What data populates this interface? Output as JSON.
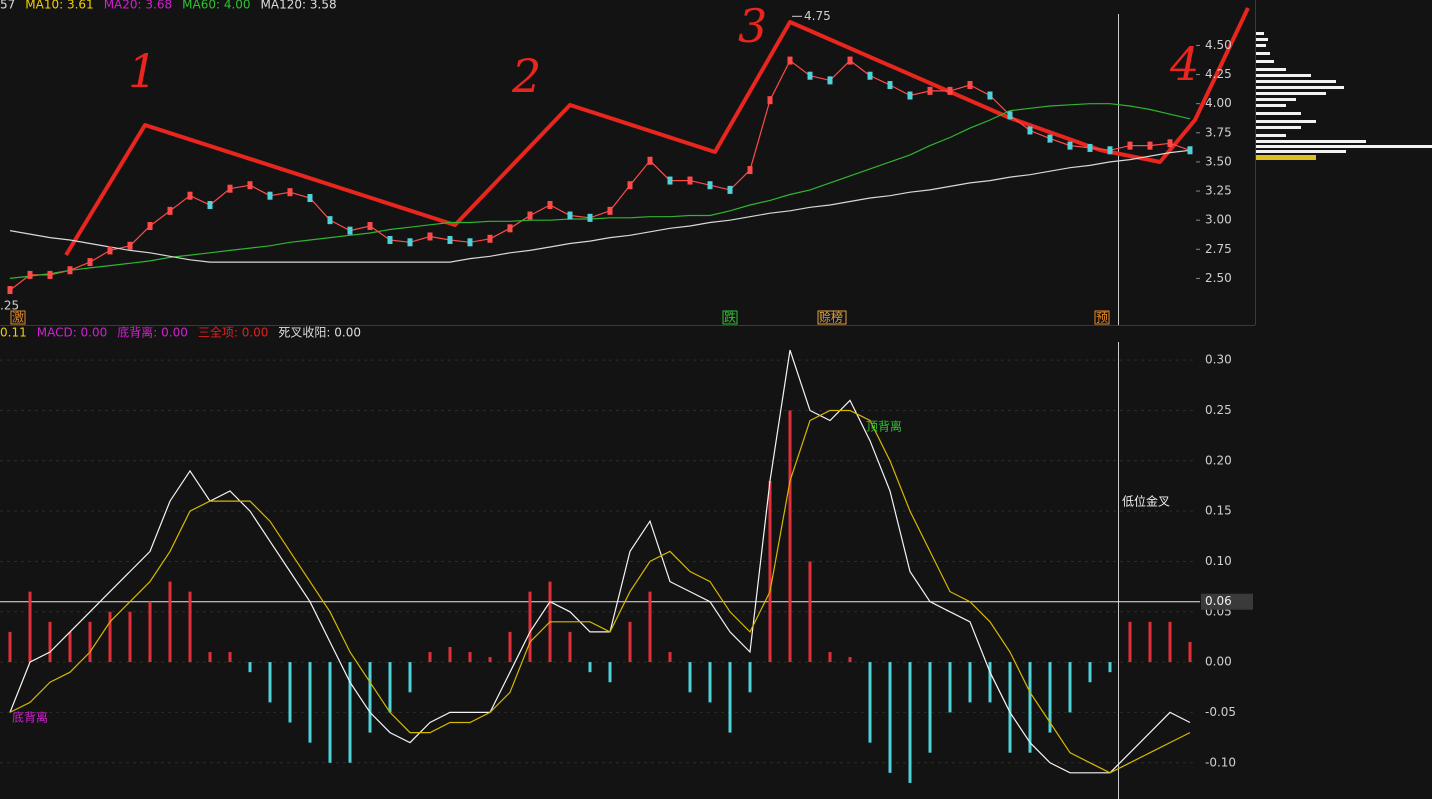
{
  "chart_data": [
    {
      "type": "line",
      "header": [
        {
          "text": "57",
          "color": "#dddddd"
        },
        {
          "text": "MA10: 3.61",
          "color": "#f0d000"
        },
        {
          "text": "MA20: 3.68",
          "color": "#d020d0"
        },
        {
          "text": "MA60: 4.00",
          "color": "#30c030"
        },
        {
          "text": "MA120: 3.58",
          "color": "#dddddd"
        }
      ],
      "series": [
        {
          "color": "#ff4a4a",
          "values": [
            2.4,
            2.53,
            2.53,
            2.57,
            2.64,
            2.74,
            2.78,
            2.95,
            3.08,
            3.21,
            3.13,
            3.27,
            3.3,
            3.21,
            3.24,
            3.19,
            3.0,
            2.91,
            2.95,
            2.83,
            2.81,
            2.86,
            2.83,
            2.81,
            2.84,
            2.93,
            3.04,
            3.13,
            3.04,
            3.02,
            3.08,
            3.3,
            3.51,
            3.34,
            3.34,
            3.3,
            3.26,
            3.43,
            4.03,
            4.37,
            4.24,
            4.2,
            4.37,
            4.24,
            4.16,
            4.07,
            4.11,
            4.11,
            4.16,
            4.07,
            3.9,
            3.77,
            3.7,
            3.64,
            3.62,
            3.6,
            3.64,
            3.64,
            3.66,
            3.6
          ]
        },
        {
          "color": "#2fb52f",
          "values": [
            2.5,
            2.52,
            2.54,
            2.57,
            2.59,
            2.61,
            2.63,
            2.65,
            2.68,
            2.7,
            2.72,
            2.74,
            2.76,
            2.78,
            2.81,
            2.83,
            2.85,
            2.87,
            2.89,
            2.92,
            2.94,
            2.96,
            2.98,
            2.98,
            2.99,
            2.99,
            3.0,
            3.0,
            3.01,
            3.01,
            3.02,
            3.02,
            3.03,
            3.03,
            3.04,
            3.04,
            3.08,
            3.13,
            3.17,
            3.22,
            3.26,
            3.32,
            3.38,
            3.44,
            3.5,
            3.56,
            3.64,
            3.71,
            3.79,
            3.86,
            3.94,
            3.96,
            3.98,
            3.99,
            4.0,
            4.0,
            3.98,
            3.95,
            3.91,
            3.87
          ]
        },
        {
          "color": "#d8d8d8",
          "values": [
            2.91,
            2.88,
            2.85,
            2.83,
            2.8,
            2.77,
            2.74,
            2.72,
            2.69,
            2.66,
            2.64,
            2.64,
            2.64,
            2.64,
            2.64,
            2.64,
            2.64,
            2.64,
            2.64,
            2.64,
            2.64,
            2.64,
            2.64,
            2.67,
            2.69,
            2.72,
            2.74,
            2.77,
            2.8,
            2.82,
            2.85,
            2.87,
            2.9,
            2.93,
            2.95,
            2.98,
            3.0,
            3.03,
            3.06,
            3.08,
            3.11,
            3.13,
            3.16,
            3.19,
            3.21,
            3.24,
            3.26,
            3.29,
            3.32,
            3.34,
            3.37,
            3.39,
            3.42,
            3.45,
            3.47,
            3.5,
            3.52,
            3.55,
            3.58,
            3.6
          ]
        }
      ],
      "ylim": [
        2.1,
        4.89
      ],
      "yticks": [
        {
          "value": 2.5,
          "label": "2.50"
        },
        2.75,
        {
          "value": 3,
          "label": "3.00"
        },
        3.25,
        {
          "value": 3.5,
          "label": "3.50"
        },
        3.75,
        {
          "value": 4,
          "label": "4.00"
        },
        4.25,
        {
          "value": 4.5,
          "label": "4.50"
        }
      ],
      "max_label": 4.75,
      "min_label": ".25",
      "markers": [
        {
          "text": "激",
          "color": "#e08a2a"
        },
        {
          "text": "跌",
          "color": "#30c030"
        },
        {
          "text": "赊榜",
          "color": "#e0a040"
        },
        {
          "text": "预",
          "color": "#e08a2a"
        }
      ],
      "annotations": [
        "1",
        "2",
        "3",
        "4"
      ]
    },
    {
      "type": "bar",
      "header": [
        {
          "text": "0.11",
          "color": "#f0d000"
        },
        {
          "text": "MACD: 0.00",
          "color": "#d020d0"
        },
        {
          "text": "底背离: 0.00",
          "color": "#d020d0"
        },
        {
          "text": "三全项: 0.00",
          "color": "#e02020"
        },
        {
          "text": "死叉收阳: 0.00",
          "color": "#dddddd"
        }
      ],
      "values": [
        0.03,
        0.07,
        0.04,
        0.03,
        0.04,
        0.05,
        0.05,
        0.06,
        0.08,
        0.07,
        0.01,
        0.01,
        -0.01,
        -0.04,
        -0.06,
        -0.08,
        -0.1,
        -0.1,
        -0.07,
        -0.05,
        -0.03,
        0.01,
        0.015,
        0.01,
        0.005,
        0.03,
        0.07,
        0.08,
        0.03,
        -0.01,
        -0.02,
        0.04,
        0.07,
        0.01,
        -0.03,
        -0.04,
        -0.07,
        -0.03,
        0.18,
        0.25,
        0.1,
        0.01,
        0.005,
        -0.08,
        -0.11,
        -0.12,
        -0.09,
        -0.05,
        -0.04,
        -0.04,
        -0.09,
        -0.09,
        -0.07,
        -0.05,
        -0.02,
        -0.01,
        0.04,
        0.04,
        0.04,
        0.02
      ],
      "colors": {
        "up": "#e0303a",
        "down": "#4fd2d8"
      },
      "series": [
        {
          "color": "#f4f4f4",
          "values": [
            -0.05,
            0.0,
            0.01,
            0.03,
            0.05,
            0.07,
            0.09,
            0.11,
            0.16,
            0.19,
            0.16,
            0.17,
            0.15,
            0.12,
            0.09,
            0.06,
            0.02,
            -0.02,
            -0.05,
            -0.07,
            -0.08,
            -0.06,
            -0.05,
            -0.05,
            -0.05,
            -0.01,
            0.03,
            0.06,
            0.05,
            0.03,
            0.03,
            0.11,
            0.14,
            0.08,
            0.07,
            0.06,
            0.03,
            0.01,
            0.18,
            0.31,
            0.25,
            0.24,
            0.26,
            0.22,
            0.17,
            0.09,
            0.06,
            0.05,
            0.04,
            -0.01,
            -0.05,
            -0.08,
            -0.1,
            -0.11,
            -0.11,
            -0.11,
            -0.09,
            -0.07,
            -0.05,
            -0.06
          ]
        },
        {
          "color": "#d6b800",
          "values": [
            -0.05,
            -0.04,
            -0.02,
            -0.01,
            0.01,
            0.04,
            0.06,
            0.08,
            0.11,
            0.15,
            0.16,
            0.16,
            0.16,
            0.14,
            0.11,
            0.08,
            0.05,
            0.01,
            -0.02,
            -0.05,
            -0.07,
            -0.07,
            -0.06,
            -0.06,
            -0.05,
            -0.03,
            0.02,
            0.04,
            0.04,
            0.04,
            0.03,
            0.07,
            0.1,
            0.11,
            0.09,
            0.08,
            0.05,
            0.03,
            0.07,
            0.18,
            0.24,
            0.25,
            0.25,
            0.24,
            0.2,
            0.15,
            0.11,
            0.07,
            0.06,
            0.04,
            0.01,
            -0.03,
            -0.06,
            -0.09,
            -0.1,
            -0.11,
            -0.1,
            -0.09,
            -0.08,
            -0.07
          ]
        }
      ],
      "ylim": [
        -0.136,
        0.32
      ],
      "yticks": [
        {
          "value": -0.1,
          "label": "-0.10"
        },
        -0.05,
        {
          "value": 0,
          "label": "0.00"
        },
        0.05,
        {
          "value": 0.1,
          "label": "0.10"
        },
        0.15,
        {
          "value": 0.2,
          "label": "0.20"
        },
        0.25,
        {
          "value": 0.3,
          "label": "0.30"
        }
      ],
      "grid": true,
      "reference": 0.06,
      "annotations": [
        {
          "text": "顶背离",
          "color": "#30c030"
        },
        {
          "text": "底背离",
          "color": "#d020d0"
        },
        {
          "text": "低位金叉",
          "color": "#eeeeee"
        }
      ]
    }
  ]
}
